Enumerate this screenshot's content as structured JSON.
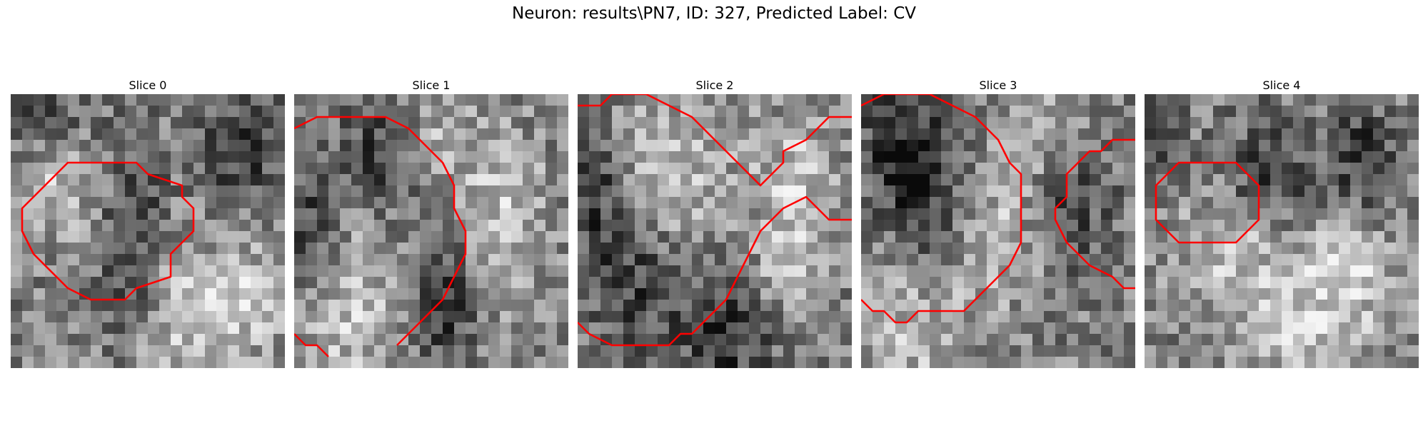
{
  "figure": {
    "title": "Neuron: results\\PN7, ID: 327, Predicted Label: CV"
  },
  "contour_color": "#ff0000",
  "slices": [
    {
      "title": "Slice 0",
      "seed": 11,
      "dark_blobs": [
        [
          0.45,
          0.55,
          0.12,
          0.35
        ],
        [
          0.85,
          0.2,
          0.15,
          0.2
        ],
        [
          0.1,
          0.1,
          0.2,
          0.15
        ]
      ],
      "light_blobs": [
        [
          0.15,
          0.28,
          0.18,
          0.25
        ],
        [
          0.6,
          0.8,
          0.18,
          0.3
        ],
        [
          0.85,
          0.75,
          0.15,
          0.2
        ]
      ],
      "contours": [
        [
          [
            2,
            9
          ],
          [
            5,
            6
          ],
          [
            11,
            6
          ],
          [
            12,
            7
          ],
          [
            15,
            8
          ],
          [
            15,
            9
          ],
          [
            16,
            10
          ],
          [
            16,
            12
          ],
          [
            14,
            14
          ],
          [
            14,
            16
          ],
          [
            11,
            17
          ],
          [
            10,
            18
          ],
          [
            7,
            18
          ],
          [
            5,
            17
          ],
          [
            2,
            14
          ],
          [
            1,
            12
          ],
          [
            1,
            10
          ],
          [
            2,
            9
          ]
        ]
      ]
    },
    {
      "title": "Slice 1",
      "seed": 23,
      "dark_blobs": [
        [
          0.35,
          0.2,
          0.18,
          0.2
        ],
        [
          0.55,
          0.75,
          0.12,
          0.25
        ],
        [
          0.05,
          0.5,
          0.1,
          0.2
        ]
      ],
      "light_blobs": [
        [
          0.2,
          0.8,
          0.2,
          0.3
        ],
        [
          0.75,
          0.45,
          0.18,
          0.3
        ],
        [
          0.5,
          0.15,
          0.15,
          0.2
        ]
      ],
      "contours": [
        [
          [
            0,
            3
          ],
          [
            2,
            2
          ],
          [
            8,
            2
          ],
          [
            10,
            3
          ],
          [
            11,
            4
          ],
          [
            13,
            6
          ],
          [
            14,
            8
          ],
          [
            14,
            10
          ],
          [
            15,
            12
          ],
          [
            15,
            14
          ],
          [
            14,
            16
          ],
          [
            13,
            18
          ],
          [
            10,
            21
          ],
          [
            9,
            22
          ]
        ],
        [
          [
            0,
            21
          ],
          [
            1,
            22
          ],
          [
            2,
            22
          ],
          [
            3,
            23
          ]
        ]
      ]
    },
    {
      "title": "Slice 2",
      "seed": 37,
      "dark_blobs": [
        [
          0.2,
          0.65,
          0.18,
          0.25
        ],
        [
          0.55,
          0.85,
          0.2,
          0.3
        ],
        [
          0.05,
          0.3,
          0.1,
          0.25
        ]
      ],
      "light_blobs": [
        [
          0.35,
          0.3,
          0.22,
          0.35
        ],
        [
          0.8,
          0.3,
          0.15,
          0.25
        ],
        [
          0.75,
          0.65,
          0.15,
          0.2
        ]
      ],
      "contours": [
        [
          [
            0,
            1
          ],
          [
            2,
            1
          ],
          [
            3,
            0
          ],
          [
            6,
            0
          ],
          [
            8,
            1
          ],
          [
            10,
            2
          ],
          [
            13,
            5
          ],
          [
            15,
            7
          ],
          [
            16,
            8
          ],
          [
            17,
            7
          ],
          [
            18,
            6
          ],
          [
            18,
            5
          ],
          [
            20,
            4
          ],
          [
            21,
            3
          ],
          [
            22,
            2
          ],
          [
            24,
            2
          ]
        ],
        [
          [
            0,
            20
          ],
          [
            1,
            21
          ],
          [
            3,
            22
          ],
          [
            8,
            22
          ],
          [
            9,
            21
          ],
          [
            10,
            21
          ],
          [
            12,
            19
          ],
          [
            13,
            18
          ],
          [
            14,
            16
          ],
          [
            15,
            14
          ],
          [
            16,
            12
          ],
          [
            17,
            11
          ],
          [
            18,
            10
          ],
          [
            20,
            9
          ],
          [
            21,
            10
          ],
          [
            22,
            11
          ],
          [
            24,
            11
          ]
        ]
      ]
    },
    {
      "title": "Slice 3",
      "seed": 53,
      "dark_blobs": [
        [
          0.25,
          0.35,
          0.12,
          0.35
        ],
        [
          0.1,
          0.2,
          0.12,
          0.25
        ],
        [
          0.75,
          0.4,
          0.15,
          0.25
        ]
      ],
      "light_blobs": [
        [
          0.65,
          0.15,
          0.15,
          0.25
        ],
        [
          0.2,
          0.85,
          0.2,
          0.25
        ],
        [
          0.5,
          0.55,
          0.18,
          0.2
        ]
      ],
      "contours": [
        [
          [
            0,
            1
          ],
          [
            2,
            0
          ],
          [
            6,
            0
          ],
          [
            8,
            1
          ],
          [
            10,
            2
          ],
          [
            12,
            4
          ],
          [
            13,
            6
          ],
          [
            14,
            7
          ],
          [
            14,
            13
          ],
          [
            13,
            15
          ],
          [
            11,
            17
          ],
          [
            10,
            18
          ],
          [
            9,
            19
          ],
          [
            5,
            19
          ],
          [
            4,
            20
          ],
          [
            3,
            20
          ],
          [
            2,
            19
          ],
          [
            1,
            19
          ],
          [
            0,
            18
          ]
        ],
        [
          [
            24,
            4
          ],
          [
            22,
            4
          ],
          [
            21,
            5
          ],
          [
            20,
            5
          ],
          [
            19,
            6
          ],
          [
            18,
            7
          ],
          [
            18,
            9
          ],
          [
            17,
            10
          ],
          [
            17,
            11
          ],
          [
            18,
            13
          ],
          [
            19,
            14
          ],
          [
            20,
            15
          ],
          [
            22,
            16
          ],
          [
            23,
            17
          ],
          [
            24,
            17
          ]
        ]
      ]
    },
    {
      "title": "Slice 4",
      "seed": 71,
      "dark_blobs": [
        [
          0.45,
          0.3,
          0.18,
          0.2
        ],
        [
          0.8,
          0.25,
          0.12,
          0.2
        ],
        [
          0.05,
          0.15,
          0.08,
          0.2
        ]
      ],
      "light_blobs": [
        [
          0.3,
          0.55,
          0.2,
          0.25
        ],
        [
          0.75,
          0.6,
          0.15,
          0.2
        ],
        [
          0.6,
          0.85,
          0.25,
          0.3
        ]
      ],
      "contours": [
        [
          [
            2,
            7
          ],
          [
            3,
            6
          ],
          [
            6,
            6
          ],
          [
            8,
            6
          ],
          [
            9,
            7
          ],
          [
            10,
            8
          ],
          [
            10,
            11
          ],
          [
            9,
            12
          ],
          [
            8,
            13
          ],
          [
            6,
            13
          ],
          [
            3,
            13
          ],
          [
            2,
            12
          ],
          [
            1,
            11
          ],
          [
            1,
            8
          ],
          [
            2,
            7
          ]
        ]
      ]
    }
  ]
}
